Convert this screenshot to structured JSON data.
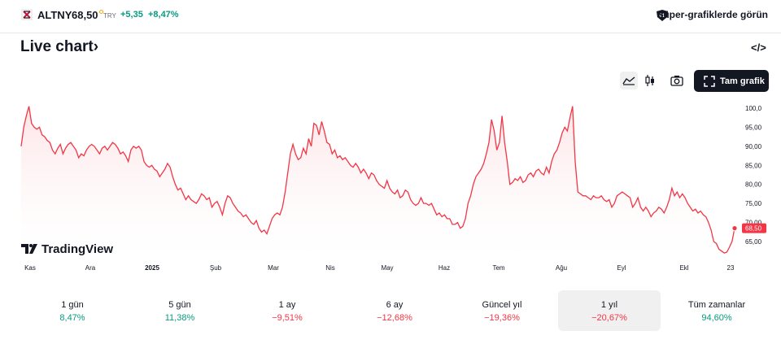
{
  "header": {
    "symbol": "ALTNY",
    "price": "68,50",
    "currency": "TRY",
    "change": "+5,35",
    "change_pct": "+8,47%",
    "super_charts": "Süper-grafiklerde görün"
  },
  "title": "Live chart›",
  "toolbar": {
    "icons": [
      "area-chart-icon",
      "candles-icon",
      "camera-icon",
      "fullscreen-icon"
    ],
    "full_chart": "Tam grafik"
  },
  "watermark": "TradingView",
  "chart_data": {
    "type": "area",
    "x_labels": [
      "Kas",
      "Ara",
      "2025",
      "Şub",
      "Mar",
      "Nis",
      "May",
      "Haz",
      "Tem",
      "Ağu",
      "Eyl",
      "Ekl",
      "23"
    ],
    "y_ticks": [
      "100,0",
      "95,00",
      "90,00",
      "85,00",
      "80,00",
      "75,00",
      "70,00",
      "65,00"
    ],
    "ylim": [
      60,
      102
    ],
    "last_price_label": "68,50",
    "last_value": 68.5,
    "line_color": "#f23645",
    "fill_color": "#fde4e6",
    "values": [
      90,
      95,
      98,
      100.5,
      96,
      95,
      94.5,
      95,
      93,
      92.5,
      91.5,
      91,
      89,
      88,
      89.5,
      90.5,
      88,
      89.5,
      90.5,
      91,
      90,
      89,
      87,
      88,
      87.5,
      89,
      90,
      90.5,
      90,
      89,
      88,
      89.5,
      90,
      89,
      90,
      91,
      90.5,
      89.5,
      88,
      88.5,
      87.5,
      86,
      89,
      90,
      89.5,
      90,
      89,
      86,
      85,
      84.5,
      85,
      84,
      83.5,
      82,
      83,
      84,
      85.5,
      84.5,
      82,
      80,
      78.5,
      79,
      77.5,
      76,
      77,
      76,
      75.5,
      75,
      76,
      77.5,
      77,
      76,
      76.5,
      74,
      75,
      75.5,
      74,
      72,
      75,
      77,
      76.5,
      75,
      74,
      73,
      72.5,
      71.5,
      72,
      71,
      70,
      69.5,
      70.5,
      68.5,
      67.5,
      68,
      67,
      69,
      71,
      72,
      72.5,
      72,
      74,
      78,
      83,
      88,
      90.5,
      88,
      86.5,
      87,
      89.5,
      88,
      92,
      90,
      96,
      95.5,
      93,
      96.5,
      94,
      91,
      90.5,
      88,
      89,
      87,
      87.5,
      86.5,
      87,
      86,
      85,
      84.5,
      85.5,
      84.5,
      83,
      84,
      83,
      81.5,
      83,
      82.5,
      81,
      80,
      79.5,
      79,
      81,
      79,
      78,
      77.5,
      78.5,
      76.5,
      77,
      78.5,
      78,
      76,
      75,
      74.5,
      75,
      76.5,
      75,
      75,
      74.5,
      75,
      73.5,
      72,
      72.5,
      71.5,
      72,
      71,
      71,
      69.5,
      69.5,
      70,
      68.5,
      69,
      71,
      75,
      77,
      80,
      82,
      83,
      84,
      85.5,
      88,
      91,
      97,
      94,
      89,
      91,
      98,
      91,
      86,
      80,
      80.5,
      81.5,
      81,
      82,
      80.5,
      81,
      82.5,
      83,
      82,
      83.5,
      84,
      83,
      82.5,
      84.5,
      83,
      86,
      88,
      89,
      91,
      93.5,
      95,
      94,
      97.5,
      100.5,
      86,
      78,
      77.5,
      77,
      77,
      76.5,
      76,
      77,
      76.5,
      76.5,
      77,
      76,
      75.5,
      76,
      74,
      75,
      77,
      77.5,
      78,
      77.5,
      77,
      76.5,
      74,
      75,
      76.5,
      74,
      73,
      74,
      73,
      71.5,
      72.5,
      73,
      74,
      73.5,
      72.5,
      74,
      76,
      79,
      77,
      78,
      76.5,
      77.5,
      76.5,
      75,
      74,
      73,
      73.5,
      72.5,
      73,
      72,
      71.5,
      70,
      68,
      65,
      64.5,
      63,
      62.5,
      62,
      62.2,
      63.5,
      65,
      68.5
    ]
  },
  "periods": [
    {
      "label": "1 gün",
      "value": "8,47%",
      "dir": "pos"
    },
    {
      "label": "5 gün",
      "value": "11,38%",
      "dir": "pos"
    },
    {
      "label": "1 ay",
      "value": "−9,51%",
      "dir": "neg"
    },
    {
      "label": "6 ay",
      "value": "−12,68%",
      "dir": "neg"
    },
    {
      "label": "Güncel yıl",
      "value": "−19,36%",
      "dir": "neg"
    },
    {
      "label": "1 yıl",
      "value": "−20,67%",
      "dir": "neg",
      "active": true
    },
    {
      "label": "Tüm zamanlar",
      "value": "94,60%",
      "dir": "pos"
    }
  ]
}
